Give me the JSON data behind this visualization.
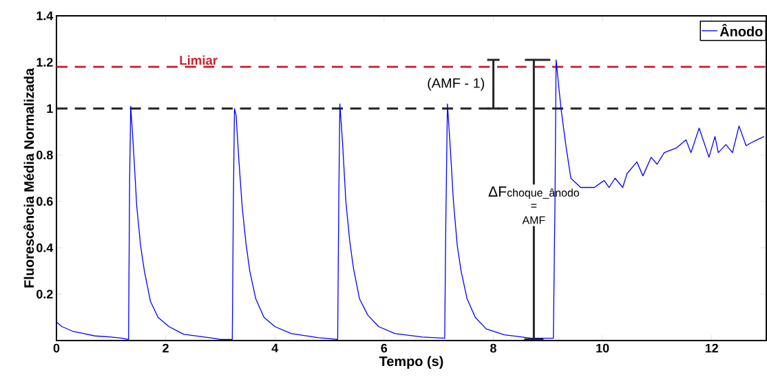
{
  "chart_data": {
    "type": "line",
    "xlabel": "Tempo (s)",
    "ylabel": "Fluorescência Média Normalizada",
    "xlim": [
      0,
      13
    ],
    "ylim": [
      0,
      1.4
    ],
    "xticks": [
      0,
      2,
      4,
      6,
      8,
      10,
      12
    ],
    "yticks": [
      0.2,
      0.4,
      0.6,
      0.8,
      1,
      1.2,
      1.4
    ],
    "legend": "top right",
    "marker": "none",
    "line_style": "solid",
    "ref_lines": [
      {
        "axis": "y",
        "value": 1.18,
        "label": "Limiar",
        "color": "#c8232c",
        "line_style": "dashed"
      },
      {
        "axis": "y",
        "value": 1,
        "color": "#222222",
        "line_style": "dashed"
      }
    ],
    "annotations": [
      "(AMF - 1)",
      "ΔF",
      "choque_ânodo",
      "=",
      "AMF"
    ],
    "series": [
      {
        "name": "Ânodo",
        "color": "#0000ff",
        "x": [
          0,
          0.1,
          0.3,
          0.5,
          0.7,
          1.0,
          1.2,
          1.32,
          1.34,
          1.36,
          1.41,
          1.47,
          1.54,
          1.61,
          1.72,
          1.86,
          2.06,
          2.33,
          2.87,
          3.0,
          3.22,
          3.24,
          3.26,
          3.29,
          3.34,
          3.4,
          3.47,
          3.54,
          3.65,
          3.8,
          4.0,
          4.3,
          4.8,
          5.15,
          5.17,
          5.19,
          5.24,
          5.3,
          5.37,
          5.44,
          5.55,
          5.7,
          5.9,
          6.2,
          6.7,
          7.11,
          7.13,
          7.16,
          7.21,
          7.27,
          7.34,
          7.41,
          7.52,
          7.67,
          7.87,
          8.2,
          8.7,
          9.1,
          9.13,
          9.15,
          9.24,
          9.33,
          9.42,
          9.6,
          9.85,
          10.03,
          10.12,
          10.23,
          10.37,
          10.45,
          10.63,
          10.74,
          10.89,
          11.0,
          11.13,
          11.35,
          11.53,
          11.62,
          11.77,
          11.95,
          12.06,
          12.12,
          12.26,
          12.38,
          12.5,
          12.63,
          12.78,
          12.96
        ],
        "values": [
          0.08,
          0.06,
          0.04,
          0.03,
          0.02,
          0.015,
          0.01,
          0.005,
          0.69,
          1.01,
          0.83,
          0.58,
          0.41,
          0.3,
          0.17,
          0.1,
          0.06,
          0.027,
          0.01,
          0.005,
          0.005,
          0.6,
          1.0,
          0.97,
          0.78,
          0.58,
          0.42,
          0.3,
          0.18,
          0.1,
          0.06,
          0.03,
          0.012,
          0.005,
          0.6,
          1.02,
          0.85,
          0.6,
          0.43,
          0.31,
          0.18,
          0.11,
          0.06,
          0.03,
          0.015,
          0.01,
          0.5,
          1.02,
          0.84,
          0.6,
          0.41,
          0.3,
          0.18,
          0.1,
          0.05,
          0.025,
          0.01,
          0.01,
          0.6,
          1.21,
          1.0,
          0.84,
          0.7,
          0.66,
          0.66,
          0.69,
          0.66,
          0.7,
          0.66,
          0.72,
          0.77,
          0.71,
          0.79,
          0.76,
          0.81,
          0.83,
          0.865,
          0.81,
          0.916,
          0.79,
          0.88,
          0.81,
          0.845,
          0.81,
          0.925,
          0.84,
          0.86,
          0.88
        ]
      }
    ]
  }
}
